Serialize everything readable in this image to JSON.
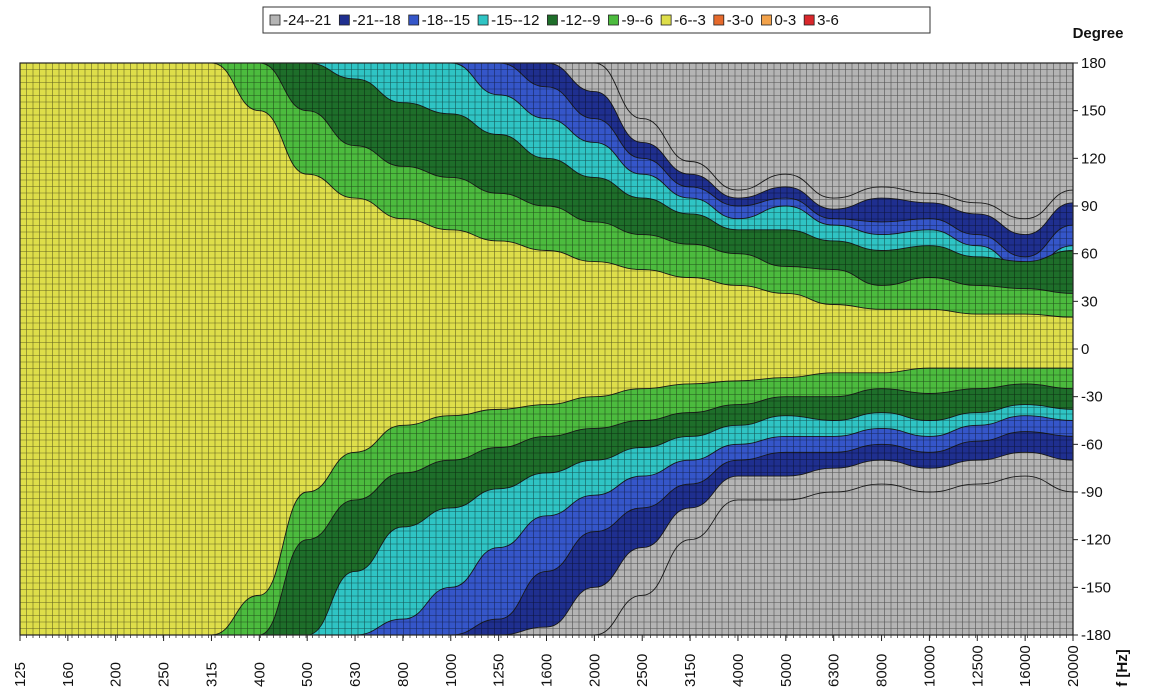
{
  "chart_data": {
    "type": "heatmap",
    "title": "",
    "xlabel": "f [Hz]",
    "ylabel": "Degree",
    "x_scale": "log",
    "x_ticks": [
      "125",
      "160",
      "200",
      "250",
      "315",
      "400",
      "500",
      "630",
      "800",
      "1000",
      "1250",
      "1600",
      "2000",
      "2500",
      "3150",
      "4000",
      "5000",
      "6300",
      "8000",
      "10000",
      "12500",
      "16000",
      "20000"
    ],
    "y_ticks": [
      180,
      150,
      120,
      90,
      60,
      30,
      0,
      -30,
      -60,
      -90,
      -120,
      -150,
      -180
    ],
    "ylim": [
      -180,
      180
    ],
    "grid": true,
    "legend_position": "top",
    "levels": [
      {
        "label": "-24--21",
        "min": -24,
        "max": -21,
        "color": "#b4b4b4"
      },
      {
        "label": "-21--18",
        "min": -21,
        "max": -18,
        "color": "#1f2f8f"
      },
      {
        "label": "-18--15",
        "min": -18,
        "max": -15,
        "color": "#3556c9"
      },
      {
        "label": "-15--12",
        "min": -15,
        "max": -12,
        "color": "#2fc4c4"
      },
      {
        "label": "-12--9",
        "min": -12,
        "max": -9,
        "color": "#1e6e2a"
      },
      {
        "label": "-9--6",
        "min": -9,
        "max": -6,
        "color": "#4cbb3e"
      },
      {
        "label": "-6--3",
        "min": -6,
        "max": -3,
        "color": "#dede4a"
      },
      {
        "label": "-3-0",
        "min": -3,
        "max": 0,
        "color": "#e66a2c"
      },
      {
        "label": "0-3",
        "min": 0,
        "max": 3,
        "color": "#f2a24a"
      },
      {
        "label": "3-6",
        "min": 3,
        "max": 6,
        "color": "#d9272b"
      }
    ],
    "contour_edges_deg": {
      "x": [
        "125",
        "160",
        "200",
        "250",
        "315",
        "400",
        "500",
        "630",
        "800",
        "1000",
        "1250",
        "1600",
        "2000",
        "2500",
        "3150",
        "4000",
        "5000",
        "6300",
        "8000",
        "10000",
        "12500",
        "16000",
        "20000"
      ],
      "upper": {
        "-3": [
          180,
          180,
          180,
          180,
          180,
          150,
          110,
          95,
          82,
          75,
          68,
          62,
          55,
          50,
          45,
          40,
          35,
          28,
          25,
          25,
          22,
          22,
          20
        ],
        "-6": [
          180,
          180,
          180,
          180,
          180,
          180,
          150,
          128,
          115,
          108,
          98,
          90,
          80,
          72,
          66,
          60,
          52,
          50,
          40,
          45,
          40,
          38,
          35
        ],
        "-9": [
          180,
          180,
          180,
          180,
          180,
          180,
          180,
          170,
          155,
          148,
          135,
          120,
          108,
          95,
          85,
          75,
          75,
          68,
          62,
          65,
          58,
          55,
          62
        ],
        "-12": [
          180,
          180,
          180,
          180,
          180,
          180,
          180,
          180,
          180,
          180,
          160,
          145,
          130,
          110,
          95,
          82,
          90,
          78,
          72,
          75,
          65,
          50,
          65
        ],
        "-15": [
          180,
          180,
          180,
          180,
          180,
          180,
          180,
          180,
          180,
          180,
          180,
          165,
          145,
          120,
          102,
          90,
          95,
          82,
          80,
          82,
          72,
          58,
          78
        ],
        "-18": [
          180,
          180,
          180,
          180,
          180,
          180,
          180,
          180,
          180,
          180,
          180,
          180,
          162,
          130,
          110,
          95,
          102,
          88,
          95,
          92,
          85,
          72,
          92
        ],
        "-21": [
          180,
          180,
          180,
          180,
          180,
          180,
          180,
          180,
          180,
          180,
          180,
          180,
          180,
          145,
          118,
          100,
          110,
          95,
          102,
          98,
          92,
          82,
          100
        ]
      },
      "lower": {
        "-3": [
          -180,
          -180,
          -180,
          -180,
          -180,
          -155,
          -90,
          -65,
          -48,
          -42,
          -38,
          -35,
          -30,
          -25,
          -22,
          -20,
          -18,
          -15,
          -15,
          -12,
          -12,
          -12,
          -12
        ],
        "-6": [
          -180,
          -180,
          -180,
          -180,
          -180,
          -180,
          -120,
          -95,
          -78,
          -70,
          -62,
          -55,
          -50,
          -45,
          -40,
          -35,
          -30,
          -30,
          -25,
          -28,
          -25,
          -22,
          -25
        ],
        "-9": [
          -180,
          -180,
          -180,
          -180,
          -180,
          -180,
          -180,
          -140,
          -112,
          -100,
          -88,
          -78,
          -70,
          -62,
          -55,
          -48,
          -42,
          -45,
          -40,
          -45,
          -40,
          -35,
          -38
        ],
        "-12": [
          -180,
          -180,
          -180,
          -180,
          -180,
          -180,
          -180,
          -180,
          -170,
          -150,
          -125,
          -105,
          -92,
          -80,
          -70,
          -60,
          -55,
          -55,
          -50,
          -55,
          -48,
          -42,
          -45
        ],
        "-15": [
          -180,
          -180,
          -180,
          -180,
          -180,
          -180,
          -180,
          -180,
          -180,
          -180,
          -170,
          -140,
          -115,
          -100,
          -85,
          -70,
          -65,
          -65,
          -60,
          -65,
          -58,
          -52,
          -55
        ],
        "-18": [
          -180,
          -180,
          -180,
          -180,
          -180,
          -180,
          -180,
          -180,
          -180,
          -180,
          -180,
          -175,
          -150,
          -125,
          -100,
          -80,
          -80,
          -75,
          -70,
          -75,
          -70,
          -65,
          -70
        ],
        "-21": [
          -180,
          -180,
          -180,
          -180,
          -180,
          -180,
          -180,
          -180,
          -180,
          -180,
          -180,
          -180,
          -180,
          -155,
          -120,
          -95,
          -95,
          -90,
          -85,
          -90,
          -85,
          -80,
          -90
        ]
      }
    }
  }
}
